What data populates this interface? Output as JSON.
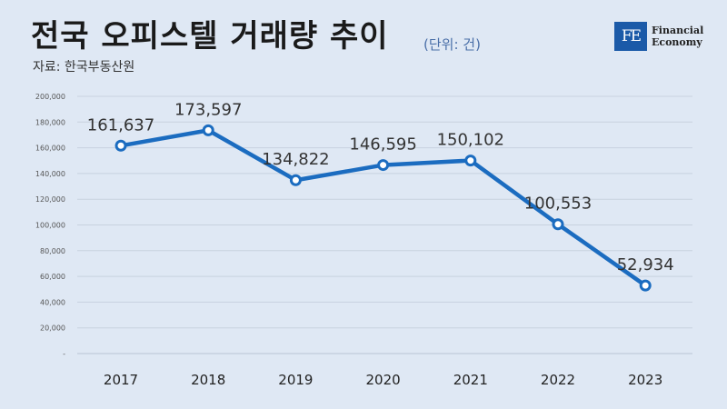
{
  "header": {
    "title": "전국 오피스텔 거래량 추이",
    "unit": "(단위: 건)",
    "source": "자료: 한국부동산원"
  },
  "logo": {
    "mark": "FE",
    "line1": "Financial",
    "line2": "Economy",
    "color": "#1b5aa8"
  },
  "chart_data": {
    "type": "line",
    "categories": [
      "2017",
      "2018",
      "2019",
      "2020",
      "2021",
      "2022",
      "2023"
    ],
    "series": [
      {
        "values": [
          161637,
          173597,
          134822,
          146595,
          150102,
          100553,
          52934
        ]
      }
    ],
    "data_labels": [
      "161,637",
      "173,597",
      "134,822",
      "146,595",
      "150,102",
      "100,553",
      "52,934"
    ],
    "y_ticks": [
      0,
      20000,
      40000,
      60000,
      80000,
      100000,
      120000,
      140000,
      160000,
      180000,
      200000
    ],
    "y_tick_labels": [
      "-",
      "20,000",
      "40,000",
      "60,000",
      "80,000",
      "100,000",
      "120,000",
      "140,000",
      "160,000",
      "180,000",
      "200,000"
    ],
    "ylim": [
      0,
      200000
    ],
    "grid": true,
    "line_color": "#1b6cc0"
  }
}
